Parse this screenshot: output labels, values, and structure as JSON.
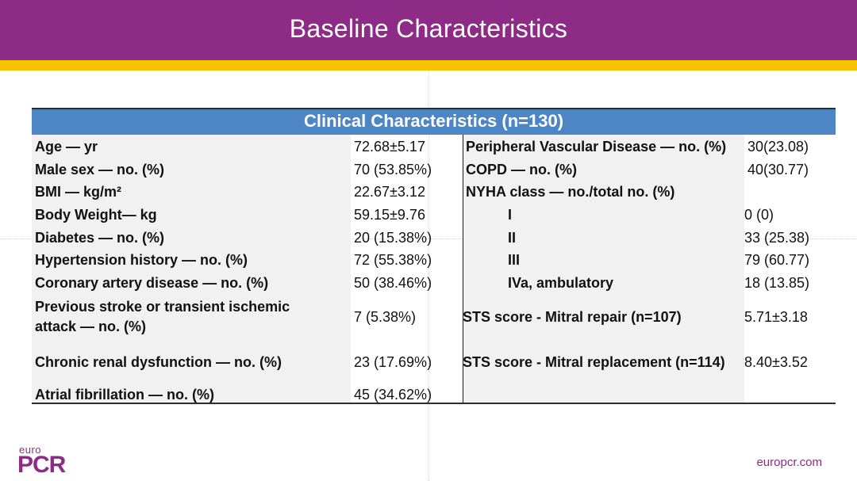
{
  "header": {
    "title": "Baseline Characteristics"
  },
  "table": {
    "heading": "Clinical Characteristics (n=130)",
    "left_rows": [
      {
        "label": "Age — yr",
        "value": "72.68±5.17"
      },
      {
        "label": "Male sex — no. (%)",
        "value": "70 (53.85%)"
      },
      {
        "label": "BMI — kg/m²",
        "value": "22.67±3.12"
      },
      {
        "label": "Body Weight— kg",
        "value": "59.15±9.76"
      },
      {
        "label": "Diabetes — no. (%)",
        "value": "20 (15.38%)"
      },
      {
        "label": "Hypertension history — no. (%)",
        "value": "72 (55.38%)"
      },
      {
        "label": "Coronary artery disease — no. (%)",
        "value": "50 (38.46%)"
      },
      {
        "label_line1": "Previous stroke or transient ischemic",
        "label_line2": "attack — no. (%)",
        "value": "7 (5.38%)"
      },
      {
        "label": "Chronic renal dysfunction — no. (%)",
        "value": "23 (17.69%)"
      },
      {
        "label": "Atrial fibrillation — no. (%)",
        "value": "45 (34.62%)"
      }
    ],
    "right_rows": [
      {
        "label": "Peripheral Vascular Disease — no. (%)",
        "value": "30(23.08)"
      },
      {
        "label": "COPD — no. (%)",
        "value": "40(30.77)"
      },
      {
        "label": "NYHA class — no./total no. (%)",
        "value": ""
      },
      {
        "label": "I",
        "value": "0 (0)"
      },
      {
        "label": "II",
        "value": "33 (25.38)"
      },
      {
        "label": "III",
        "value": "79 (60.77)"
      },
      {
        "label": "IVa, ambulatory",
        "value": "18 (13.85)"
      },
      {
        "label": "STS score - Mitral repair  (n=107)",
        "value": "5.71±3.18"
      },
      {
        "label": "STS score - Mitral replacement  (n=114)",
        "value": "8.40±3.52"
      }
    ]
  },
  "footer": {
    "logo_small": "euro",
    "logo_big": "PCR",
    "website": "europcr.com"
  }
}
